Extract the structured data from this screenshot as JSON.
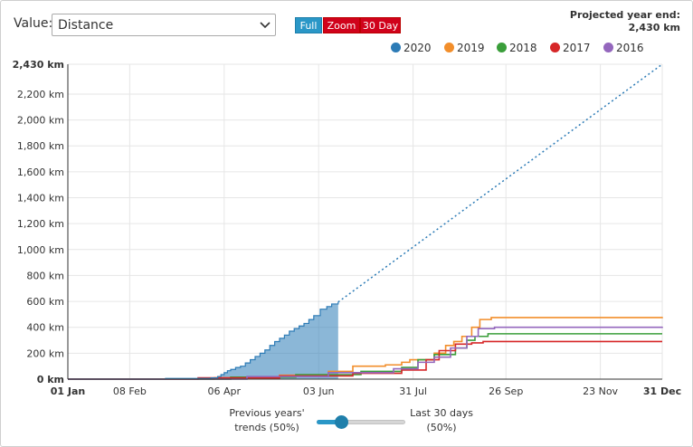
{
  "controls": {
    "value_label": "Value:",
    "value_selected": "Distance",
    "buttons": {
      "full": "Full",
      "zoom": "Zoom",
      "thirty_day": "30 Day"
    }
  },
  "projection": {
    "label": "Projected year end:",
    "value": "2,430 km"
  },
  "slider": {
    "left_label": "Previous years' trends (50%)",
    "right_label": "Last 30 days (50%)",
    "position_fraction": 0.28
  },
  "chart_data": {
    "type": "line",
    "title": "",
    "xlabel": "",
    "ylabel": "",
    "x_ticks": [
      "01 Jan",
      "08 Feb",
      "06 Apr",
      "03 Jun",
      "31 Jul",
      "26 Sep",
      "23 Nov",
      "31 Dec"
    ],
    "x_tick_days": [
      0,
      38,
      96,
      154,
      212,
      269,
      327,
      365
    ],
    "y_ticks": [
      "0 km",
      "200 km",
      "400 km",
      "600 km",
      "800 km",
      "1,000 km",
      "1,200 km",
      "1,400 km",
      "1,600 km",
      "1,800 km",
      "2,000 km",
      "2,200 km",
      "2,430 km"
    ],
    "y_tick_values": [
      0,
      200,
      400,
      600,
      800,
      1000,
      1200,
      1400,
      1600,
      1800,
      2000,
      2200,
      2430
    ],
    "ylim": [
      0,
      2430
    ],
    "xlim_days": [
      0,
      365
    ],
    "grid": true,
    "legend_position": "top-right",
    "series": [
      {
        "name": "2020",
        "color": "#2c7bb6",
        "fill": true,
        "points": [
          [
            0,
            0
          ],
          [
            60,
            5
          ],
          [
            88,
            10
          ],
          [
            92,
            20
          ],
          [
            94,
            35
          ],
          [
            96,
            50
          ],
          [
            98,
            65
          ],
          [
            100,
            75
          ],
          [
            103,
            90
          ],
          [
            106,
            100
          ],
          [
            109,
            125
          ],
          [
            112,
            150
          ],
          [
            115,
            175
          ],
          [
            118,
            200
          ],
          [
            121,
            225
          ],
          [
            124,
            260
          ],
          [
            127,
            290
          ],
          [
            130,
            315
          ],
          [
            133,
            340
          ],
          [
            136,
            370
          ],
          [
            139,
            390
          ],
          [
            142,
            410
          ],
          [
            145,
            430
          ],
          [
            148,
            460
          ],
          [
            151,
            490
          ],
          [
            155,
            540
          ],
          [
            159,
            560
          ],
          [
            162,
            580
          ],
          [
            166,
            595
          ]
        ]
      },
      {
        "name": "2019",
        "color": "#f28e2b",
        "points": [
          [
            0,
            0
          ],
          [
            90,
            10
          ],
          [
            130,
            30
          ],
          [
            160,
            60
          ],
          [
            175,
            100
          ],
          [
            195,
            110
          ],
          [
            205,
            130
          ],
          [
            210,
            150
          ],
          [
            225,
            200
          ],
          [
            232,
            260
          ],
          [
            237,
            290
          ],
          [
            242,
            330
          ],
          [
            248,
            400
          ],
          [
            253,
            460
          ],
          [
            260,
            475
          ],
          [
            365,
            480
          ]
        ]
      },
      {
        "name": "2018",
        "color": "#3a9e3a",
        "points": [
          [
            0,
            0
          ],
          [
            100,
            15
          ],
          [
            140,
            35
          ],
          [
            180,
            60
          ],
          [
            205,
            90
          ],
          [
            215,
            150
          ],
          [
            225,
            190
          ],
          [
            238,
            240
          ],
          [
            245,
            300
          ],
          [
            250,
            330
          ],
          [
            258,
            350
          ],
          [
            365,
            350
          ]
        ]
      },
      {
        "name": "2017",
        "color": "#d62728",
        "points": [
          [
            0,
            0
          ],
          [
            80,
            10
          ],
          [
            130,
            25
          ],
          [
            175,
            45
          ],
          [
            205,
            70
          ],
          [
            220,
            150
          ],
          [
            228,
            220
          ],
          [
            238,
            270
          ],
          [
            248,
            280
          ],
          [
            255,
            290
          ],
          [
            365,
            290
          ]
        ]
      },
      {
        "name": "2016",
        "color": "#9467bd",
        "points": [
          [
            0,
            0
          ],
          [
            110,
            20
          ],
          [
            160,
            50
          ],
          [
            200,
            80
          ],
          [
            215,
            130
          ],
          [
            225,
            170
          ],
          [
            235,
            240
          ],
          [
            245,
            330
          ],
          [
            252,
            390
          ],
          [
            262,
            400
          ],
          [
            365,
            405
          ]
        ]
      }
    ],
    "projection_line": {
      "color": "#2c7bb6",
      "from": [
        166,
        595
      ],
      "to": [
        365,
        2430
      ]
    }
  }
}
